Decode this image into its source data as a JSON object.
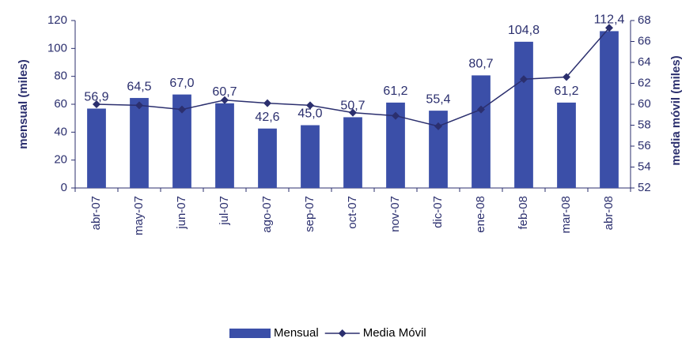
{
  "chart_data": {
    "type": "combo",
    "categories": [
      "abr-07",
      "may-07",
      "jun-07",
      "jul-07",
      "ago-07",
      "sep-07",
      "oct-07",
      "nov-07",
      "dic-07",
      "ene-08",
      "feb-08",
      "mar-08",
      "abr-08"
    ],
    "series": [
      {
        "name": "Mensual",
        "type": "bar",
        "color": "#3b4fa8",
        "values": [
          56.9,
          64.5,
          67.0,
          60.7,
          42.6,
          45.0,
          50.7,
          61.2,
          55.4,
          80.7,
          104.8,
          61.2,
          112.4
        ],
        "value_labels": [
          "56,9",
          "64,5",
          "67,0",
          "60,7",
          "42,6",
          "45,0",
          "50,7",
          "61,2",
          "55,4",
          "80,7",
          "104,8",
          "61,2",
          "112,4"
        ]
      },
      {
        "name": "Media Móvil",
        "type": "line",
        "axis": "y2",
        "color": "#2b2f6e",
        "values": [
          60.0,
          59.9,
          59.5,
          60.4,
          60.1,
          59.9,
          59.2,
          58.9,
          57.9,
          59.5,
          62.4,
          62.6,
          67.3
        ]
      }
    ],
    "ylabel": "mensual (miles)",
    "y2label": "media móvil (miles)",
    "ylim": [
      0,
      120
    ],
    "yticks": [
      0,
      20,
      40,
      60,
      80,
      100,
      120
    ],
    "y2lim": [
      52,
      68
    ],
    "y2ticks": [
      52,
      54,
      56,
      58,
      60,
      62,
      64,
      66,
      68
    ],
    "legend": "bottom"
  }
}
